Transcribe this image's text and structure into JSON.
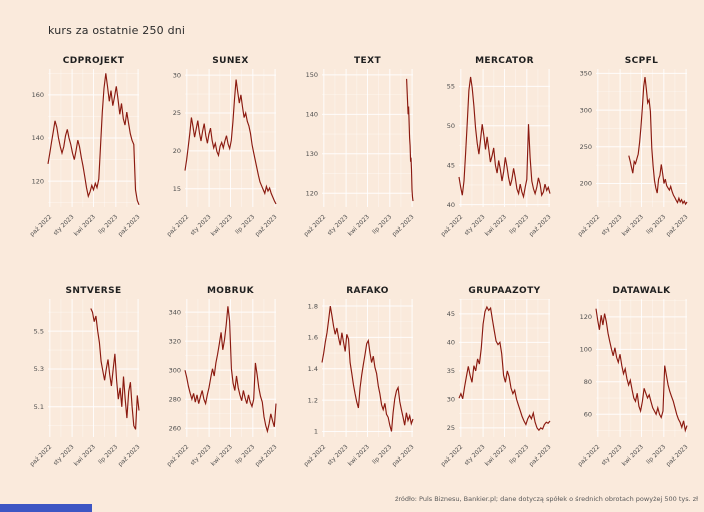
{
  "page": {
    "title": "kurs za ostatnie 250 dni",
    "footer": "źródło: Puls Biznesu, Bankier.pl; dane dotyczą spółek o średnich obrotach powyżej 500 tys. zł",
    "background_color": "#faeadc",
    "line_color": "#8b1a10",
    "grid_color": "#ffffff",
    "accent_bar_color": "#3d56c4"
  },
  "x_tick_labels": [
    "paź 2022",
    "sty 2023",
    "kwi 2023",
    "lip 2023",
    "paź 2023"
  ],
  "chart_data": [
    {
      "type": "line",
      "title": "CDPROJEKT",
      "y_ticks": [
        120,
        140,
        160
      ],
      "y_range": [
        108,
        172
      ],
      "x_start_frac": 0,
      "values": [
        128,
        133,
        138,
        143,
        148,
        145,
        140,
        136,
        133,
        136,
        141,
        144,
        140,
        137,
        133,
        130,
        134,
        139,
        136,
        131,
        127,
        122,
        117,
        113,
        115,
        118,
        116,
        119,
        117,
        121,
        136,
        152,
        163,
        170,
        164,
        157,
        162,
        155,
        159,
        164,
        158,
        151,
        156,
        149,
        146,
        152,
        147,
        142,
        139,
        137,
        116,
        111,
        109
      ]
    },
    {
      "type": "line",
      "title": "SUNEX",
      "y_ticks": [
        15,
        20,
        25,
        30
      ],
      "y_range": [
        12.6,
        30.8
      ],
      "x_start_frac": 0,
      "values": [
        17.4,
        18.8,
        20.5,
        22.3,
        24.4,
        23.2,
        21.8,
        22.9,
        24.0,
        22.4,
        21.3,
        22.6,
        23.6,
        22.0,
        21.0,
        22.2,
        23.0,
        21.4,
        20.4,
        21.0,
        19.9,
        19.4,
        20.6,
        21.1,
        20.4,
        21.3,
        22.0,
        20.9,
        20.3,
        21.4,
        23.8,
        26.8,
        29.4,
        27.8,
        26.3,
        27.4,
        25.8,
        24.4,
        25.0,
        23.9,
        23.3,
        22.3,
        20.8,
        19.8,
        18.8,
        17.8,
        16.8,
        15.9,
        15.4,
        14.9,
        14.4,
        15.3,
        14.7,
        15.1,
        14.4,
        13.9,
        13.4,
        13.0
      ]
    },
    {
      "type": "line",
      "title": "TEXT",
      "y_ticks": [
        120,
        130,
        140,
        150
      ],
      "y_range": [
        116.5,
        151.5
      ],
      "x_start_frac": 0.93,
      "values": [
        149,
        146,
        143,
        140,
        142,
        138,
        134,
        132,
        128,
        129,
        126,
        121,
        119,
        118
      ]
    },
    {
      "type": "line",
      "title": "MERCATOR",
      "y_ticks": [
        40,
        45,
        50,
        55
      ],
      "y_range": [
        39.7,
        57.2
      ],
      "x_start_frac": 0,
      "values": [
        43.5,
        42.2,
        41.2,
        43.0,
        46.5,
        50.5,
        54.5,
        56.2,
        54.8,
        52.5,
        49.8,
        47.8,
        46.4,
        48.2,
        50.2,
        48.8,
        47.0,
        48.6,
        47.0,
        45.4,
        46.2,
        47.2,
        45.0,
        44.0,
        45.6,
        44.4,
        43.0,
        44.2,
        46.0,
        44.8,
        43.4,
        42.4,
        43.2,
        44.6,
        43.4,
        42.0,
        41.4,
        42.6,
        41.6,
        41.0,
        42.2,
        43.2,
        50.2,
        46.0,
        43.0,
        42.0,
        41.4,
        42.2,
        43.4,
        42.6,
        41.2,
        41.6,
        42.6,
        41.8,
        42.2,
        41.4
      ]
    },
    {
      "type": "line",
      "title": "SCPFL",
      "y_ticks": [
        200,
        250,
        300,
        350
      ],
      "y_range": [
        168,
        356
      ],
      "x_start_frac": 0.36,
      "values": [
        238,
        231,
        222,
        214,
        230,
        227,
        234,
        240,
        256,
        276,
        302,
        332,
        345,
        328,
        310,
        314,
        298,
        248,
        224,
        204,
        194,
        187,
        206,
        211,
        226,
        214,
        200,
        206,
        197,
        194,
        191,
        196,
        189,
        184,
        181,
        177,
        174,
        180,
        175,
        178,
        173,
        176,
        172,
        175
      ]
    },
    {
      "type": "line",
      "title": "SNTVERSE",
      "y_ticks": [
        5.1,
        5.3,
        5.5
      ],
      "y_range": [
        4.94,
        5.67
      ],
      "x_start_frac": 0.47,
      "values": [
        5.62,
        5.6,
        5.55,
        5.58,
        5.5,
        5.44,
        5.34,
        5.29,
        5.24,
        5.3,
        5.35,
        5.27,
        5.21,
        5.3,
        5.38,
        5.24,
        5.14,
        5.2,
        5.1,
        5.26,
        5.14,
        5.04,
        5.18,
        5.23,
        5.1,
        5.0,
        4.98,
        5.16,
        5.08
      ]
    },
    {
      "type": "line",
      "title": "MOBRUK",
      "y_ticks": [
        260,
        280,
        300,
        320,
        340
      ],
      "y_range": [
        254,
        349
      ],
      "x_start_frac": 0,
      "values": [
        300,
        295,
        289,
        284,
        280,
        284,
        278,
        283,
        277,
        282,
        286,
        280,
        277,
        283,
        288,
        295,
        301,
        296,
        305,
        311,
        318,
        326,
        314,
        321,
        331,
        344,
        334,
        301,
        291,
        286,
        296,
        288,
        283,
        279,
        286,
        281,
        277,
        283,
        278,
        275,
        280,
        305,
        297,
        288,
        282,
        278,
        268,
        262,
        258,
        263,
        270,
        265,
        261,
        277
      ]
    },
    {
      "type": "line",
      "title": "RAFAKO",
      "y_ticks": [
        1.0,
        1.2,
        1.4,
        1.6,
        1.8
      ],
      "y_range": [
        0.965,
        1.845
      ],
      "x_start_frac": 0,
      "values": [
        1.44,
        1.5,
        1.57,
        1.63,
        1.71,
        1.8,
        1.74,
        1.67,
        1.62,
        1.66,
        1.6,
        1.55,
        1.63,
        1.57,
        1.51,
        1.62,
        1.59,
        1.44,
        1.37,
        1.3,
        1.24,
        1.19,
        1.15,
        1.28,
        1.36,
        1.43,
        1.49,
        1.56,
        1.58,
        1.5,
        1.44,
        1.48,
        1.41,
        1.37,
        1.29,
        1.24,
        1.17,
        1.14,
        1.18,
        1.11,
        1.09,
        1.04,
        1.0,
        1.12,
        1.21,
        1.26,
        1.28,
        1.19,
        1.14,
        1.09,
        1.04,
        1.12,
        1.07,
        1.1,
        1.05,
        1.08
      ]
    },
    {
      "type": "line",
      "title": "GRUPAAZOTY",
      "y_ticks": [
        25,
        30,
        35,
        40,
        45
      ],
      "y_range": [
        23.4,
        47.6
      ],
      "x_start_frac": 0,
      "values": [
        30.2,
        31.0,
        30.1,
        32.2,
        34.0,
        35.8,
        34.2,
        33.0,
        35.9,
        35.0,
        37.1,
        36.2,
        39.0,
        43.2,
        45.4,
        46.2,
        45.6,
        46.0,
        44.0,
        42.0,
        40.2,
        39.6,
        40.0,
        38.0,
        34.2,
        33.0,
        35.0,
        34.0,
        32.0,
        31.0,
        31.6,
        30.0,
        29.0,
        28.0,
        27.0,
        26.2,
        25.6,
        26.6,
        27.2,
        26.6,
        27.6,
        26.0,
        25.0,
        24.6,
        25.0,
        24.8,
        25.6,
        26.0,
        25.8,
        26.2
      ]
    },
    {
      "type": "line",
      "title": "DATAWALK",
      "y_ticks": [
        60,
        80,
        100,
        120
      ],
      "y_range": [
        46,
        131
      ],
      "x_start_frac": 0,
      "values": [
        125,
        118,
        112,
        121,
        115,
        122,
        117,
        110,
        105,
        100,
        96,
        101,
        95,
        92,
        97,
        90,
        85,
        88,
        82,
        78,
        81,
        75,
        70,
        68,
        73,
        65,
        62,
        68,
        76,
        73,
        70,
        72,
        68,
        64,
        62,
        60,
        64,
        60,
        58,
        62,
        90,
        84,
        78,
        74,
        71,
        68,
        64,
        60,
        57,
        55,
        52,
        56,
        50,
        53
      ]
    }
  ]
}
